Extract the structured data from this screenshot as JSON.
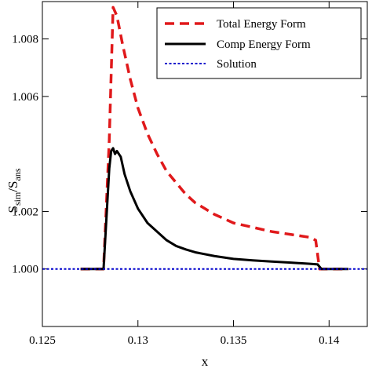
{
  "chart_data": {
    "type": "line",
    "xlabel": "x",
    "ylabel": {
      "main": "S",
      "sub1": "sim",
      "sep": "/S",
      "sub2": "ans"
    },
    "xlim": [
      0.125,
      0.142
    ],
    "ylim": [
      0.998,
      1.0093
    ],
    "grid": false,
    "legend_position": "top-right",
    "x_ticks": [
      {
        "value": 0.125,
        "label": "0.125"
      },
      {
        "value": 0.13,
        "label": "0.13"
      },
      {
        "value": 0.135,
        "label": "0.135"
      },
      {
        "value": 0.14,
        "label": "0.14"
      }
    ],
    "y_ticks": [
      {
        "value": 1.0,
        "label": "1.000"
      },
      {
        "value": 1.002,
        "label": "1.002"
      },
      {
        "value": 1.006,
        "label": "1.006"
      },
      {
        "value": 1.008,
        "label": "1.008"
      }
    ],
    "series": [
      {
        "name": "Total Energy Form",
        "color": "#e0191b",
        "style": "dashed",
        "x": [
          0.127,
          0.1282,
          0.1285,
          0.1287,
          0.1289,
          0.1292,
          0.1296,
          0.13,
          0.1305,
          0.131,
          0.1315,
          0.132,
          0.1325,
          0.133,
          0.1335,
          0.134,
          0.135,
          0.136,
          0.137,
          0.138,
          0.139,
          0.1393,
          0.1395,
          0.14,
          0.141
        ],
        "y": [
          1.0,
          1.0,
          1.0045,
          1.0091,
          1.0088,
          1.0078,
          1.0066,
          1.0056,
          1.0047,
          1.004,
          1.0034,
          1.003,
          1.0026,
          1.0023,
          1.0021,
          1.0019,
          1.0016,
          1.00145,
          1.0013,
          1.0012,
          1.0011,
          1.001,
          1.0,
          1.0,
          1.0
        ]
      },
      {
        "name": "Comp Energy Form",
        "color": "#000000",
        "style": "solid",
        "x": [
          0.127,
          0.1282,
          0.1285,
          0.1286,
          0.1287,
          0.1288,
          0.1289,
          0.1291,
          0.1293,
          0.1296,
          0.13,
          0.1305,
          0.131,
          0.1315,
          0.132,
          0.1325,
          0.133,
          0.134,
          0.135,
          0.136,
          0.137,
          0.138,
          0.139,
          0.1394,
          0.1396,
          0.14,
          0.141
        ],
        "y": [
          1.0,
          1.0,
          1.0035,
          1.0041,
          1.0042,
          1.004,
          1.0041,
          1.0039,
          1.0033,
          1.0027,
          1.0021,
          1.0016,
          1.0013,
          1.001,
          1.0008,
          1.00068,
          1.00058,
          1.00045,
          1.00035,
          1.0003,
          1.00026,
          1.00022,
          1.00018,
          1.00016,
          1.0,
          1.0,
          1.0
        ]
      },
      {
        "name": "Solution",
        "color": "#0000cc",
        "style": "dotted",
        "x": [
          0.125,
          0.142
        ],
        "y": [
          1.0,
          1.0
        ]
      }
    ]
  }
}
